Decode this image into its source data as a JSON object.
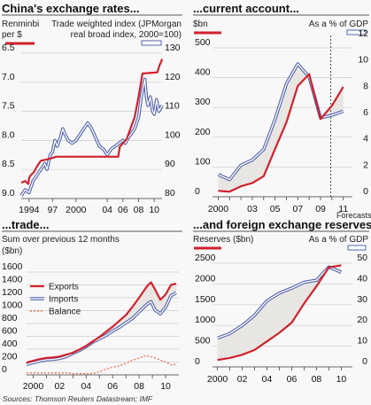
{
  "source": "Sources: Thomson Reuters Datastream; IMF",
  "chart_data": [
    {
      "type": "line",
      "title": "China's exchange rates...",
      "left_axis_label_1": "Renminbi",
      "left_axis_label_2": "per $",
      "right_axis_label_1": "Trade weighted index (JPMorgan",
      "right_axis_label_2": "real broad index, 2000=100)",
      "left_axis": {
        "ticks": [
          "6.5",
          "7.0",
          "7.5",
          "8.0",
          "8.5",
          "9.0"
        ],
        "range": [
          9.0,
          6.5
        ],
        "inverted": true
      },
      "right_axis": {
        "ticks": [
          "130",
          "120",
          "110",
          "100",
          "90",
          "80"
        ],
        "range": [
          80,
          130
        ]
      },
      "x_ticks": [
        "1994",
        "97",
        "2000",
        "04",
        "06",
        "08",
        "10"
      ],
      "x_range": [
        1993.0,
        2011.0
      ],
      "series": [
        {
          "name": "Renminbi per $",
          "axis": "left",
          "color": "#d0222e",
          "points": [
            [
              1993.0,
              8.73
            ],
            [
              1993.5,
              8.7
            ],
            [
              1993.9,
              8.75
            ],
            [
              1994.0,
              8.65
            ],
            [
              1994.2,
              8.6
            ],
            [
              1994.6,
              8.55
            ],
            [
              1995.0,
              8.45
            ],
            [
              1995.5,
              8.35
            ],
            [
              1996.5,
              8.32
            ],
            [
              1997.5,
              8.28
            ],
            [
              2005.4,
              8.28
            ],
            [
              2005.6,
              8.11
            ],
            [
              2006.0,
              8.05
            ],
            [
              2006.5,
              7.97
            ],
            [
              2007.0,
              7.78
            ],
            [
              2007.5,
              7.6
            ],
            [
              2008.0,
              7.25
            ],
            [
              2008.5,
              6.85
            ],
            [
              2010.4,
              6.83
            ],
            [
              2010.7,
              6.7
            ],
            [
              2010.9,
              6.65
            ],
            [
              2011.0,
              6.6
            ]
          ]
        },
        {
          "name": "Trade weighted index",
          "axis": "right",
          "color": "#5566aa",
          "points": [
            [
              1993.0,
              81
            ],
            [
              1993.5,
              83
            ],
            [
              1994.0,
              82
            ],
            [
              1994.5,
              86
            ],
            [
              1995.0,
              88
            ],
            [
              1995.5,
              90
            ],
            [
              1996.0,
              92
            ],
            [
              1996.3,
              90
            ],
            [
              1996.7,
              95
            ],
            [
              1997.0,
              96
            ],
            [
              1997.3,
              100
            ],
            [
              1997.6,
              98
            ],
            [
              1998.0,
              101
            ],
            [
              1998.3,
              104
            ],
            [
              1998.6,
              102
            ],
            [
              1999.0,
              100
            ],
            [
              1999.5,
              99
            ],
            [
              2000.0,
              100
            ],
            [
              2000.5,
              102
            ],
            [
              2001.0,
              104
            ],
            [
              2001.5,
              106
            ],
            [
              2002.0,
              104
            ],
            [
              2002.5,
              101
            ],
            [
              2003.0,
              98
            ],
            [
              2003.5,
              97
            ],
            [
              2004.0,
              95
            ],
            [
              2004.5,
              97
            ],
            [
              2005.0,
              98
            ],
            [
              2005.5,
              99
            ],
            [
              2006.0,
              100
            ],
            [
              2006.3,
              99
            ],
            [
              2006.7,
              101
            ],
            [
              2007.0,
              102
            ],
            [
              2007.5,
              104
            ],
            [
              2008.0,
              108
            ],
            [
              2008.4,
              116
            ],
            [
              2008.8,
              121
            ],
            [
              2009.0,
              115
            ],
            [
              2009.2,
              112
            ],
            [
              2009.5,
              115
            ],
            [
              2009.8,
              110
            ],
            [
              2010.0,
              109
            ],
            [
              2010.3,
              114
            ],
            [
              2010.6,
              110
            ],
            [
              2011.0,
              112
            ]
          ]
        }
      ]
    },
    {
      "type": "line",
      "title": "...current account...",
      "left_axis_label_1": "$bn",
      "right_axis_label_1": "As a % of GDP",
      "left_axis": {
        "ticks": [
          "500",
          "400",
          "300",
          "200",
          "100",
          "0"
        ],
        "range": [
          0,
          500
        ]
      },
      "right_axis": {
        "ticks": [
          "12",
          "10",
          "8",
          "6",
          "4",
          "2",
          "0"
        ],
        "range": [
          0,
          12
        ]
      },
      "x_ticks": [
        "2000",
        "03",
        "05",
        "07",
        "09",
        "11"
      ],
      "x_range": [
        1999.5,
        2011.8
      ],
      "forecast_from": 2009.9,
      "forecasts_label": "Forecasts",
      "series": [
        {
          "name": "$bn",
          "axis": "left",
          "color": "#d0222e",
          "x": [
            2000,
            2001,
            2002,
            2003,
            2004,
            2005,
            2006,
            2007,
            2008,
            2009,
            2010,
            2011
          ],
          "values": [
            20,
            17,
            35,
            46,
            69,
            161,
            250,
            372,
            412,
            261,
            306,
            369
          ]
        },
        {
          "name": "As a % of GDP",
          "axis": "right",
          "color": "#5566aa",
          "x": [
            2000,
            2001,
            2002,
            2003,
            2004,
            2005,
            2006,
            2007,
            2008,
            2009,
            2010,
            2011
          ],
          "values": [
            1.7,
            1.3,
            2.4,
            2.8,
            3.6,
            5.9,
            8.6,
            10.1,
            9.1,
            6.0,
            6.2,
            6.5
          ]
        }
      ]
    },
    {
      "type": "line",
      "title": "...trade...",
      "left_axis_label_1": "Sum over previous 12 months",
      "left_axis_label_2": "($bn)",
      "left_axis": {
        "ticks": [
          "1600",
          "1400",
          "1200",
          "1000",
          "800",
          "600",
          "400",
          "200",
          "0"
        ],
        "range": [
          0,
          1600
        ]
      },
      "x_ticks": [
        "2000",
        "02",
        "04",
        "06",
        "08",
        "10"
      ],
      "x_range": [
        1999.5,
        2011.0
      ],
      "legend": [
        "Exports",
        "Imports",
        "Balance"
      ],
      "series": [
        {
          "name": "Exports",
          "color": "#d0222e",
          "points": [
            [
              1999.5,
              190
            ],
            [
              2000.0,
              220
            ],
            [
              2000.5,
              245
            ],
            [
              2001.0,
              265
            ],
            [
              2001.5,
              270
            ],
            [
              2002.0,
              285
            ],
            [
              2002.5,
              315
            ],
            [
              2003.0,
              345
            ],
            [
              2003.5,
              395
            ],
            [
              2004.0,
              450
            ],
            [
              2004.5,
              520
            ],
            [
              2005.0,
              590
            ],
            [
              2005.5,
              670
            ],
            [
              2006.0,
              750
            ],
            [
              2006.5,
              840
            ],
            [
              2007.0,
              930
            ],
            [
              2007.5,
              1060
            ],
            [
              2008.0,
              1200
            ],
            [
              2008.6,
              1380
            ],
            [
              2008.9,
              1440
            ],
            [
              2009.2,
              1330
            ],
            [
              2009.6,
              1170
            ],
            [
              2010.0,
              1250
            ],
            [
              2010.4,
              1400
            ],
            [
              2010.8,
              1420
            ]
          ]
        },
        {
          "name": "Imports",
          "color": "#5566aa",
          "points": [
            [
              1999.5,
              160
            ],
            [
              2000.0,
              190
            ],
            [
              2000.5,
              215
            ],
            [
              2001.0,
              235
            ],
            [
              2001.5,
              240
            ],
            [
              2002.0,
              255
            ],
            [
              2002.5,
              285
            ],
            [
              2003.0,
              335
            ],
            [
              2003.5,
              380
            ],
            [
              2004.0,
              440
            ],
            [
              2004.5,
              510
            ],
            [
              2005.0,
              560
            ],
            [
              2005.5,
              615
            ],
            [
              2006.0,
              680
            ],
            [
              2006.5,
              740
            ],
            [
              2007.0,
              810
            ],
            [
              2007.5,
              880
            ],
            [
              2008.0,
              980
            ],
            [
              2008.6,
              1100
            ],
            [
              2008.9,
              1140
            ],
            [
              2009.2,
              1010
            ],
            [
              2009.6,
              950
            ],
            [
              2010.0,
              1050
            ],
            [
              2010.4,
              1230
            ],
            [
              2010.8,
              1280
            ]
          ]
        },
        {
          "name": "Balance",
          "color": "#ee7755",
          "dashed": true,
          "points": [
            [
              1999.5,
              30
            ],
            [
              2000.0,
              30
            ],
            [
              2000.5,
              30
            ],
            [
              2001.0,
              30
            ],
            [
              2001.5,
              30
            ],
            [
              2002.0,
              30
            ],
            [
              2002.5,
              35
            ],
            [
              2003.0,
              20
            ],
            [
              2003.5,
              20
            ],
            [
              2004.0,
              20
            ],
            [
              2004.5,
              20
            ],
            [
              2005.0,
              50
            ],
            [
              2005.5,
              90
            ],
            [
              2006.0,
              120
            ],
            [
              2006.5,
              140
            ],
            [
              2007.0,
              180
            ],
            [
              2007.5,
              230
            ],
            [
              2008.0,
              260
            ],
            [
              2008.5,
              300
            ],
            [
              2008.9,
              280
            ],
            [
              2009.3,
              260
            ],
            [
              2009.7,
              220
            ],
            [
              2010.0,
              200
            ],
            [
              2010.5,
              150
            ],
            [
              2010.8,
              170
            ]
          ]
        }
      ]
    },
    {
      "type": "line",
      "title": "...and foreign exchange reserves",
      "left_axis_label_1": "Reserves ($bn)",
      "right_axis_label_1": "As a % of GDP",
      "left_axis": {
        "ticks": [
          "2500",
          "2000",
          "1500",
          "1000",
          "500",
          "0"
        ],
        "range": [
          0,
          2500
        ]
      },
      "right_axis": {
        "ticks": [
          "50",
          "40",
          "30",
          "20",
          "10",
          "0"
        ],
        "range": [
          0,
          50
        ]
      },
      "x_ticks": [
        "2000",
        "02",
        "04",
        "06",
        "08",
        "10"
      ],
      "x_range": [
        1999.6,
        2010.9
      ],
      "series": [
        {
          "name": "Reserves ($bn)",
          "axis": "left",
          "color": "#d0222e",
          "x": [
            2000,
            2001,
            2002,
            2003,
            2004,
            2005,
            2006,
            2007,
            2008,
            2009,
            2010
          ],
          "values": [
            166,
            216,
            292,
            409,
            615,
            822,
            1068,
            1530,
            1946,
            2399,
            2450
          ]
        },
        {
          "name": "As a % of GDP",
          "axis": "right",
          "color": "#5566aa",
          "x": [
            2000,
            2001,
            2002,
            2003,
            2004,
            2005,
            2006,
            2007,
            2008,
            2009,
            2010
          ],
          "values": [
            13.9,
            16.1,
            20.0,
            24.9,
            31.9,
            35.6,
            38.0,
            40.8,
            41.8,
            48.2,
            45.6
          ]
        }
      ]
    }
  ]
}
